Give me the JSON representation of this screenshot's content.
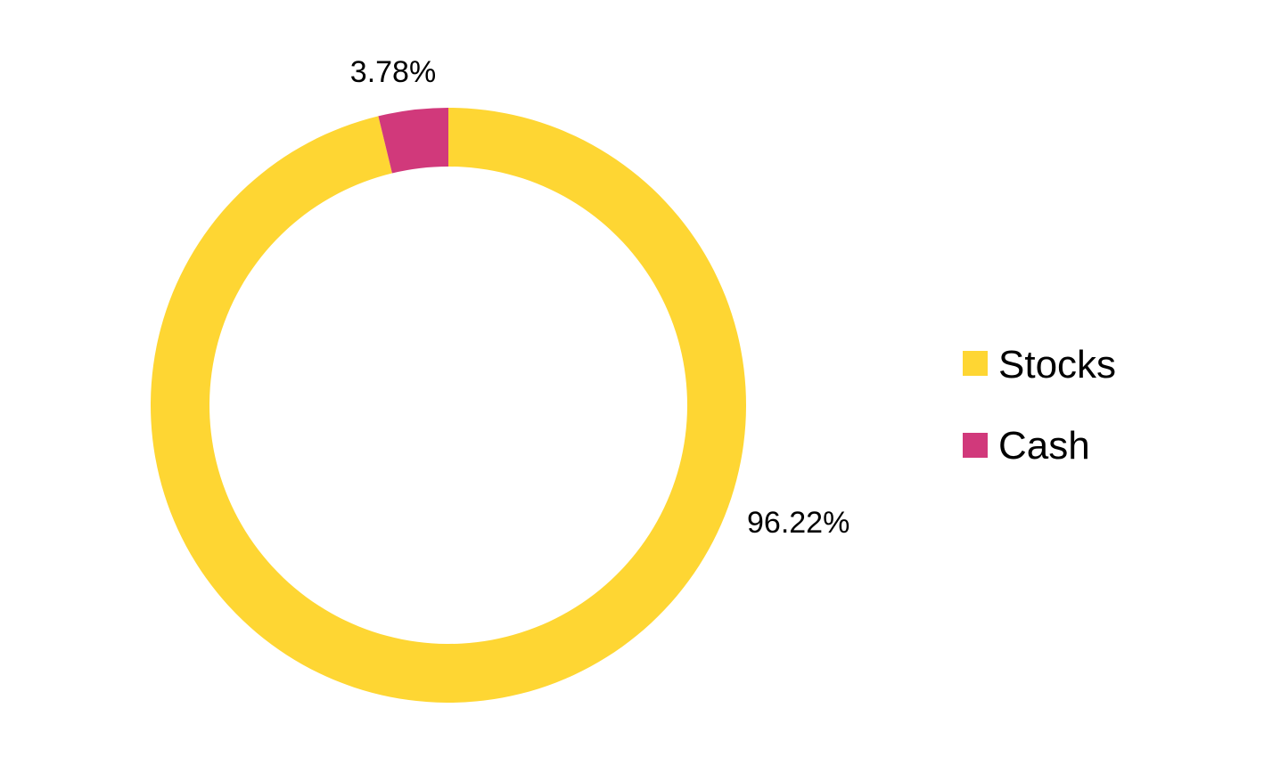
{
  "chart_data": {
    "type": "pie",
    "title": "",
    "donut": true,
    "start_angle_deg": 0,
    "direction": "clockwise",
    "legend_position": "right",
    "series": [
      {
        "name": "Stocks",
        "value": 96.22,
        "label": "96.22%",
        "color": "#FED633"
      },
      {
        "name": "Cash",
        "value": 3.78,
        "label": "3.78%",
        "color": "#D1397B"
      }
    ]
  }
}
